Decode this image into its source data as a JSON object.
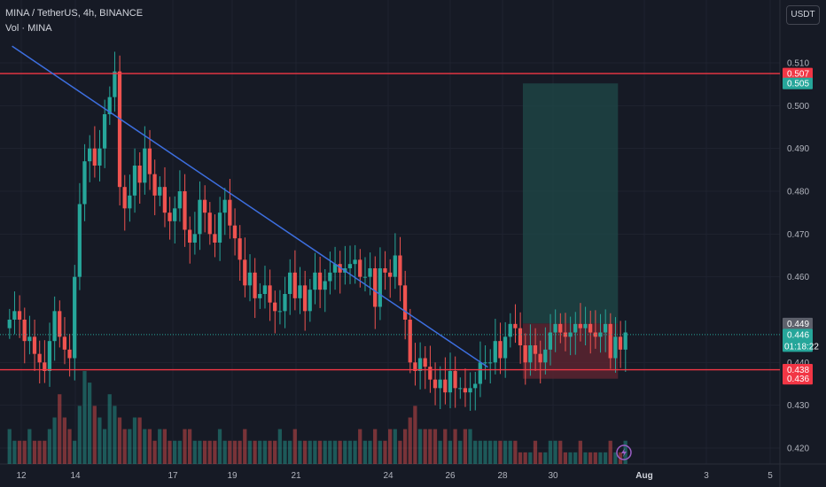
{
  "header": {
    "symbol_line": "MINA / TetherUS, 4h, BINANCE",
    "volume_line": "Vol · MINA",
    "currency_button": "USDT"
  },
  "colors": {
    "background": "#161a25",
    "up": "#26a69a",
    "down": "#ef5350",
    "trendline": "#3d6fe0",
    "level_line": "#f23645",
    "target_zone": "#1f4a48",
    "stop_zone": "#5a2530"
  },
  "chart_data": {
    "type": "candlestick",
    "symbol": "MINA / TetherUS",
    "interval": "4h",
    "exchange": "BINANCE",
    "y_ticks": [
      "0.510",
      "0.500",
      "0.490",
      "0.480",
      "0.470",
      "0.460",
      "0.440",
      "0.430",
      "0.420"
    ],
    "y_tick_values": [
      0.51,
      0.5,
      0.49,
      0.48,
      0.47,
      0.46,
      0.44,
      0.43,
      0.42
    ],
    "ylim": [
      0.4164,
      0.5177
    ],
    "x_ticks": [
      "12",
      "14",
      "17",
      "19",
      "21",
      "24",
      "26",
      "28",
      "30",
      "Aug",
      "3",
      "5"
    ],
    "x_ticks_bold": [
      "Aug"
    ],
    "horizontal_levels": [
      0.5075,
      0.4383
    ],
    "trendline": {
      "start": [
        1,
        0.5139
      ],
      "end": [
        96,
        0.4389
      ]
    },
    "long_position": {
      "start_bar": 103,
      "end_bar": 122,
      "target": 0.5052,
      "entry": 0.4491,
      "stop": 0.4362
    },
    "price_badges": [
      {
        "label": "0.507",
        "value": 0.5075,
        "kind": "level"
      },
      {
        "label": "0.505",
        "value": 0.5052,
        "kind": "target"
      },
      {
        "label": "0.449",
        "value": 0.4491,
        "kind": "entry"
      },
      {
        "label": "0.446",
        "value": 0.4465,
        "kind": "current",
        "countdown": "01:18:22"
      },
      {
        "label": "0.438",
        "value": 0.4383,
        "kind": "level"
      },
      {
        "label": "0.436",
        "value": 0.4362,
        "kind": "stop"
      }
    ],
    "candles_close": [
      0.45,
      0.452,
      0.45,
      0.445,
      0.446,
      0.442,
      0.44,
      0.438,
      0.445,
      0.452,
      0.446,
      0.443,
      0.441,
      0.46,
      0.477,
      0.487,
      0.49,
      0.486,
      0.49,
      0.498,
      0.502,
      0.508,
      0.481,
      0.476,
      0.479,
      0.486,
      0.482,
      0.49,
      0.484,
      0.479,
      0.481,
      0.475,
      0.473,
      0.476,
      0.48,
      0.471,
      0.468,
      0.47,
      0.478,
      0.475,
      0.47,
      0.468,
      0.475,
      0.478,
      0.472,
      0.469,
      0.464,
      0.458,
      0.461,
      0.455,
      0.456,
      0.458,
      0.454,
      0.452,
      0.452,
      0.456,
      0.461,
      0.455,
      0.458,
      0.452,
      0.457,
      0.461,
      0.457,
      0.459,
      0.461,
      0.463,
      0.461,
      0.462,
      0.463,
      0.464,
      0.46,
      0.46,
      0.462,
      0.453,
      0.462,
      0.461,
      0.46,
      0.465,
      0.458,
      0.45,
      0.44,
      0.438,
      0.441,
      0.439,
      0.436,
      0.434,
      0.436,
      0.433,
      0.438,
      0.434,
      0.434,
      0.433,
      0.434,
      0.435,
      0.44,
      0.44,
      0.44,
      0.445,
      0.441,
      0.446,
      0.449,
      0.448,
      0.444,
      0.44,
      0.444,
      0.442,
      0.44,
      0.443,
      0.447,
      0.449,
      0.447,
      0.446,
      0.447,
      0.449,
      0.448,
      0.449,
      0.447,
      0.446,
      0.447,
      0.449,
      0.441,
      0.446,
      0.443,
      0.447
    ],
    "volume": [
      3,
      2,
      2,
      2,
      3,
      2,
      2,
      2,
      3,
      4,
      6,
      4,
      3,
      2,
      5,
      8,
      7,
      5,
      4,
      3,
      6,
      5,
      4,
      3,
      3,
      4,
      4,
      3,
      3,
      2,
      3,
      3,
      2,
      2,
      2,
      3,
      3,
      2,
      2,
      2,
      2,
      2,
      3,
      2,
      2,
      2,
      2,
      3,
      2,
      2,
      2,
      2,
      2,
      2,
      3,
      2,
      2,
      3,
      2,
      2,
      2,
      2,
      2,
      2,
      2,
      2,
      2,
      2,
      2,
      2,
      3,
      2,
      2,
      3,
      2,
      2,
      3,
      3,
      2,
      3,
      4,
      5,
      3,
      3,
      3,
      3,
      2,
      3,
      2,
      3,
      2,
      3,
      3,
      2,
      2,
      2,
      2,
      2,
      2,
      2,
      2,
      2,
      1,
      1,
      1,
      2,
      1,
      1,
      2,
      2,
      2,
      1,
      1,
      1,
      2,
      1,
      1,
      1,
      1,
      1,
      2,
      1,
      1,
      2
    ]
  }
}
